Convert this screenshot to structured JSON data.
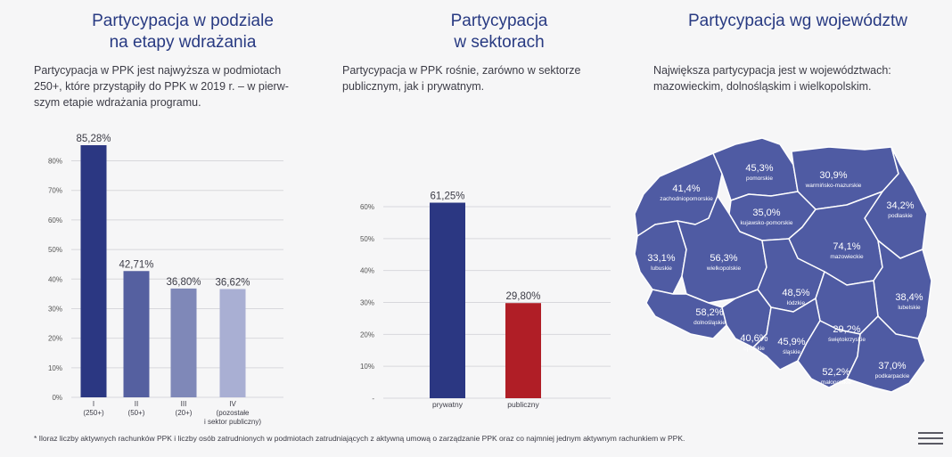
{
  "col1": {
    "title_line1": "Partycypacja w podziale",
    "title_line2": "na etapy wdrażania",
    "desc_line1": "Partycypacja w PPK jest najwyższa w podmiotach",
    "desc_line2": "250+, które przystąpiły do PPK w 2019 r. – w pierw-",
    "desc_line3": "szym etapie wdrażania programu."
  },
  "col2": {
    "title_line1": "Partycypacja",
    "title_line2": "w sektorach",
    "desc_line1": "Partycypacja w PPK rośnie, zarówno w sektorze",
    "desc_line2": "publicznym, jak i prywatnym."
  },
  "col3": {
    "title": "Partycypacja wg województw",
    "desc_line1": "Największa partycypacja jest w województwach:",
    "desc_line2": "mazowieckim, dolnośląskim i wielkopolskim."
  },
  "footnote": "* Iloraz liczby aktywnych rachunków PPK i liczby osób zatrudnionych w podmiotach zatrudniających z aktywną umową o zarządzanie PPK oraz co najmniej jednym aktywnym rachunkiem w PPK.",
  "icons": {
    "menu": "menu-icon"
  },
  "chart_data": [
    {
      "type": "bar",
      "categories": [
        [
          "I",
          "(250+)"
        ],
        [
          "II",
          "(50+)"
        ],
        [
          "III",
          "(20+)"
        ],
        [
          "IV",
          "(pozostałe",
          "i sektor publiczny)"
        ]
      ],
      "values": [
        85.28,
        42.71,
        36.8,
        36.62
      ],
      "value_labels": [
        "85,28%",
        "42,71%",
        "36,80%",
        "36,62%"
      ],
      "colors": [
        "#2b3782",
        "#5560a0",
        "#7f88b8",
        "#a9afd3"
      ],
      "yticks": [
        "0%",
        "10%",
        "20%",
        "30%",
        "40%",
        "50%",
        "60%",
        "70%",
        "80%"
      ],
      "ylim": [
        0,
        80
      ],
      "grid": true
    },
    {
      "type": "bar",
      "categories": [
        [
          "prywatny"
        ],
        [
          "publiczny"
        ]
      ],
      "values": [
        61.25,
        29.8
      ],
      "value_labels": [
        "61,25%",
        "29,80%"
      ],
      "colors": [
        "#2b3782",
        "#b01e26"
      ],
      "yticks": [
        "-",
        "10%",
        "20%",
        "30%",
        "40%",
        "50%",
        "60%"
      ],
      "ylim": [
        0,
        60
      ],
      "grid": true
    },
    {
      "type": "map",
      "color": "#4f5ba3",
      "regions": [
        {
          "name": "pomorskie",
          "value": "45,3%"
        },
        {
          "name": "warmińsko-mazurskie",
          "value": "30,9%"
        },
        {
          "name": "zachodniopomorskie",
          "value": "41,4%"
        },
        {
          "name": "kujawsko-pomorskie",
          "value": "35,0%"
        },
        {
          "name": "podlaskie",
          "value": "34,2%"
        },
        {
          "name": "lubuskie",
          "value": "33,1%"
        },
        {
          "name": "wielkopolskie",
          "value": "56,3%"
        },
        {
          "name": "mazowieckie",
          "value": "74,1%"
        },
        {
          "name": "łódzkie",
          "value": "48,5%"
        },
        {
          "name": "lubelskie",
          "value": "38,4%"
        },
        {
          "name": "dolnośląskie",
          "value": "58,2%"
        },
        {
          "name": "świętokrzyskie",
          "value": "29,2%"
        },
        {
          "name": "opolskie",
          "value": "40,6%"
        },
        {
          "name": "śląskie",
          "value": "45,9%"
        },
        {
          "name": "małopolskie",
          "value": "52,2%"
        },
        {
          "name": "podkarpackie",
          "value": "37,0%"
        }
      ]
    }
  ]
}
